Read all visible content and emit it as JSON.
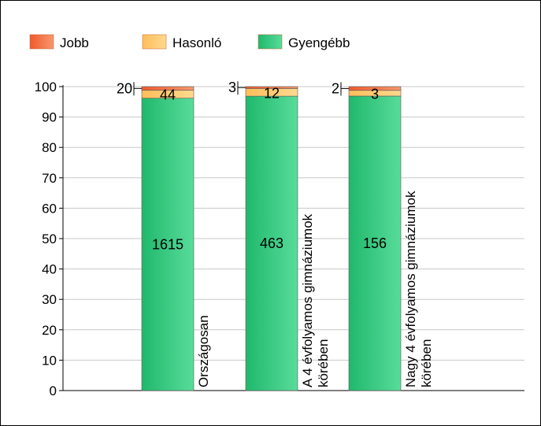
{
  "chart_data": {
    "type": "bar",
    "stacked": true,
    "percent_stacked": true,
    "title": "",
    "xlabel": "",
    "ylabel": "",
    "ylim": [
      0,
      100
    ],
    "yticks": [
      0,
      10,
      20,
      30,
      40,
      50,
      60,
      70,
      80,
      90,
      100
    ],
    "grid": true,
    "legend_position": "top-left",
    "categories": [
      "Országosan",
      "A 4 évfolyamos gimnáziumok körében",
      "Nagy 4 évfolyamos gimnáziumok körében"
    ],
    "series": [
      {
        "name": "Gyengébb",
        "counts": [
          1615,
          463,
          156
        ],
        "color": "#2dbf78"
      },
      {
        "name": "Hasonló",
        "counts": [
          44,
          12,
          3
        ],
        "color": "#ffc86e"
      },
      {
        "name": "Jobb",
        "counts": [
          20,
          3,
          2
        ],
        "color": "#f26c3c"
      }
    ],
    "legend_order": [
      "Jobb",
      "Hasonló",
      "Gyengébb"
    ]
  }
}
